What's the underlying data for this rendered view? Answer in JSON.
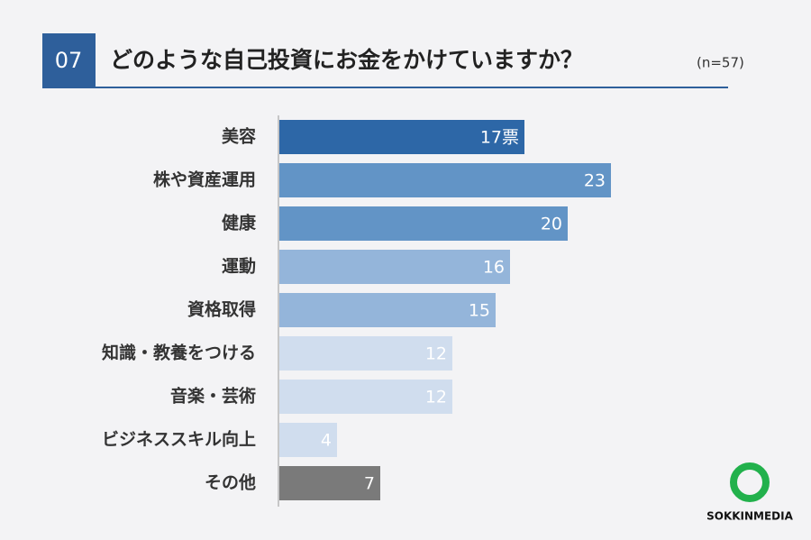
{
  "chart_data": {
    "type": "barh",
    "badge": "07",
    "title": "どのような自己投資にお金をかけていますか？",
    "subtitle": "(n=57)",
    "categories": [
      "美容",
      "株や資産運用",
      "健康",
      "運動",
      "資格取得",
      "知識・教養をつける",
      "音楽・芸術",
      "ビジネススキル向上",
      "その他"
    ],
    "values": [
      17,
      23,
      20,
      16,
      15,
      12,
      12,
      4,
      7
    ],
    "value_labels": [
      "17票",
      "23",
      "20",
      "16",
      "15",
      "12",
      "12",
      "4",
      "7"
    ],
    "colors": [
      "#2d67a7",
      "#6294c6",
      "#6294c6",
      "#94b5da",
      "#94b5da",
      "#d0ddee",
      "#d0ddee",
      "#d0ddee",
      "#7a7a7a"
    ],
    "logo": "SOKKINMEDIA"
  }
}
